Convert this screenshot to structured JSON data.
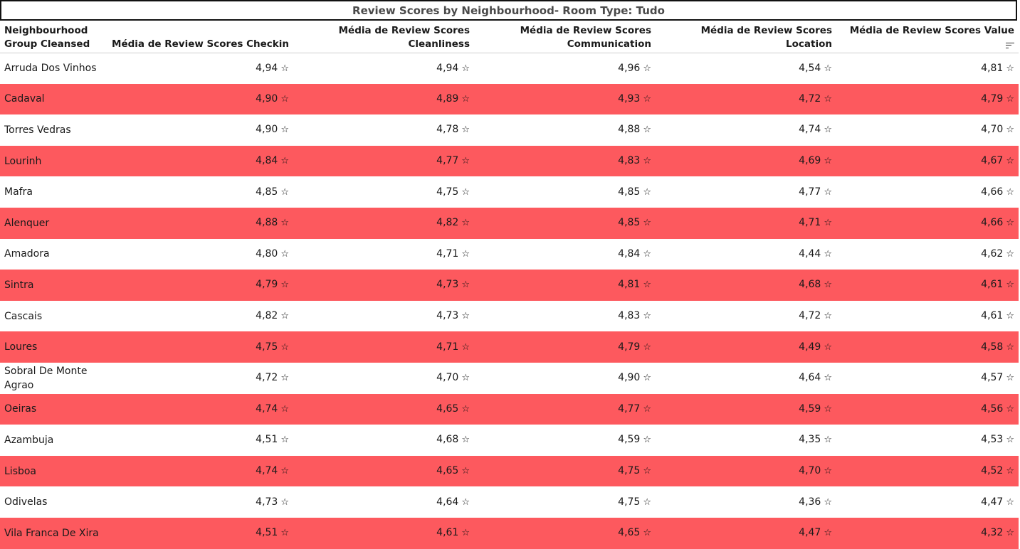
{
  "title": "Review Scores by Neighbourhood- Room Type: Tudo",
  "columns": [
    "Neighbourhood Group Cleansed",
    "Média de Review Scores Checkin",
    "Média de Review Scores Cleanliness",
    "Média de Review Scores Communication",
    "Média de Review Scores Location",
    "Média de Review Scores Value"
  ],
  "sorted_column": "Média de Review Scores Value",
  "star_glyph": "☆",
  "colors": {
    "alt_row": "#fd595e",
    "row": "#ffffff"
  },
  "rows": [
    {
      "name": "Arruda Dos Vinhos",
      "checkin": "4,94",
      "cleanliness": "4,94",
      "communication": "4,96",
      "location": "4,54",
      "value": "4,81"
    },
    {
      "name": "Cadaval",
      "checkin": "4,90",
      "cleanliness": "4,89",
      "communication": "4,93",
      "location": "4,72",
      "value": "4,79"
    },
    {
      "name": "Torres Vedras",
      "checkin": "4,90",
      "cleanliness": "4,78",
      "communication": "4,88",
      "location": "4,74",
      "value": "4,70"
    },
    {
      "name": "Lourinh",
      "checkin": "4,84",
      "cleanliness": "4,77",
      "communication": "4,83",
      "location": "4,69",
      "value": "4,67"
    },
    {
      "name": "Mafra",
      "checkin": "4,85",
      "cleanliness": "4,75",
      "communication": "4,85",
      "location": "4,77",
      "value": "4,66"
    },
    {
      "name": "Alenquer",
      "checkin": "4,88",
      "cleanliness": "4,82",
      "communication": "4,85",
      "location": "4,71",
      "value": "4,66"
    },
    {
      "name": "Amadora",
      "checkin": "4,80",
      "cleanliness": "4,71",
      "communication": "4,84",
      "location": "4,44",
      "value": "4,62"
    },
    {
      "name": "Sintra",
      "checkin": "4,79",
      "cleanliness": "4,73",
      "communication": "4,81",
      "location": "4,68",
      "value": "4,61"
    },
    {
      "name": "Cascais",
      "checkin": "4,82",
      "cleanliness": "4,73",
      "communication": "4,83",
      "location": "4,72",
      "value": "4,61"
    },
    {
      "name": "Loures",
      "checkin": "4,75",
      "cleanliness": "4,71",
      "communication": "4,79",
      "location": "4,49",
      "value": "4,58"
    },
    {
      "name": "Sobral De Monte Agrao",
      "checkin": "4,72",
      "cleanliness": "4,70",
      "communication": "4,90",
      "location": "4,64",
      "value": "4,57"
    },
    {
      "name": "Oeiras",
      "checkin": "4,74",
      "cleanliness": "4,65",
      "communication": "4,77",
      "location": "4,59",
      "value": "4,56"
    },
    {
      "name": "Azambuja",
      "checkin": "4,51",
      "cleanliness": "4,68",
      "communication": "4,59",
      "location": "4,35",
      "value": "4,53"
    },
    {
      "name": "Lisboa",
      "checkin": "4,74",
      "cleanliness": "4,65",
      "communication": "4,75",
      "location": "4,70",
      "value": "4,52"
    },
    {
      "name": "Odivelas",
      "checkin": "4,73",
      "cleanliness": "4,64",
      "communication": "4,75",
      "location": "4,36",
      "value": "4,47"
    },
    {
      "name": "Vila Franca De Xira",
      "checkin": "4,51",
      "cleanliness": "4,61",
      "communication": "4,65",
      "location": "4,47",
      "value": "4,32"
    }
  ]
}
